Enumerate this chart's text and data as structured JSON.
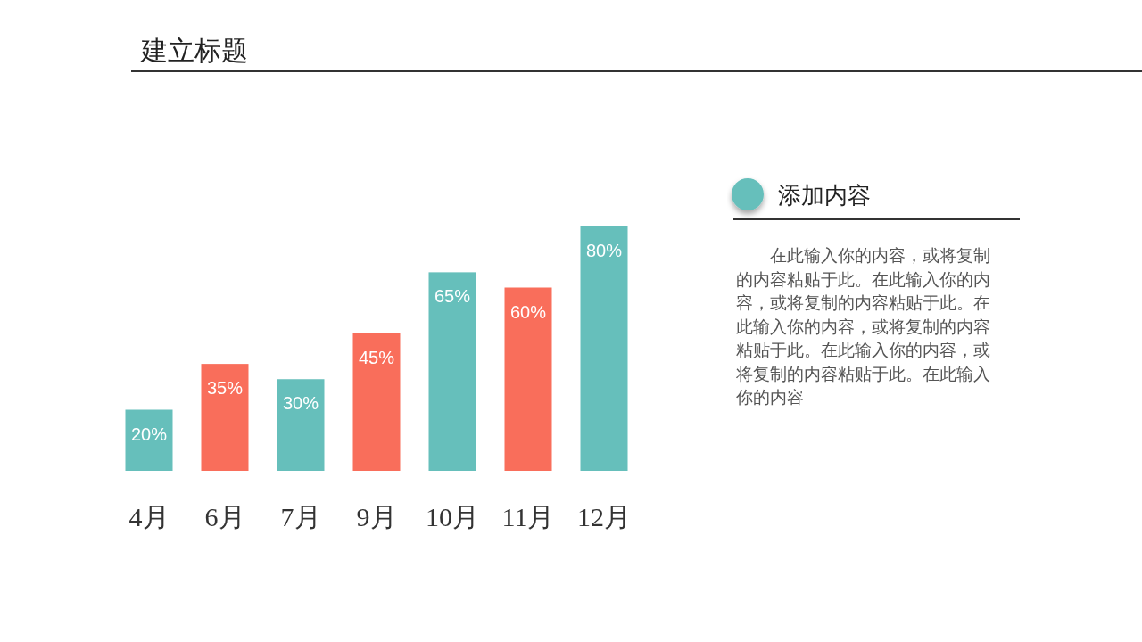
{
  "chart_data": [
    {
      "type": "bar",
      "title": "建立标题",
      "categories": [
        "4月",
        "6月",
        "7月",
        "9月",
        "10月",
        "11月",
        "12月"
      ],
      "values": [
        20,
        35,
        30,
        45,
        65,
        60,
        80
      ],
      "colors": [
        "#66bfbb",
        "#f96e5b",
        "#66bfbb",
        "#f96e5b",
        "#66bfbb",
        "#f96e5b",
        "#66bfbb"
      ],
      "value_labels": [
        "20%",
        "35%",
        "30%",
        "45%",
        "65%",
        "60%",
        "80%"
      ]
    },
    {
      "type": "other",
      "title": "添加内容",
      "annotations": [
        "在此输入你的内容，或将复制的内容粘贴于此。在此输入你的内容，或将复制的内容粘贴于此。在此输入你的内容，或将复制的内容粘贴于此。在此输入你的内容，或将复制的内容粘贴于此。在此输入你的内容"
      ]
    }
  ]
}
